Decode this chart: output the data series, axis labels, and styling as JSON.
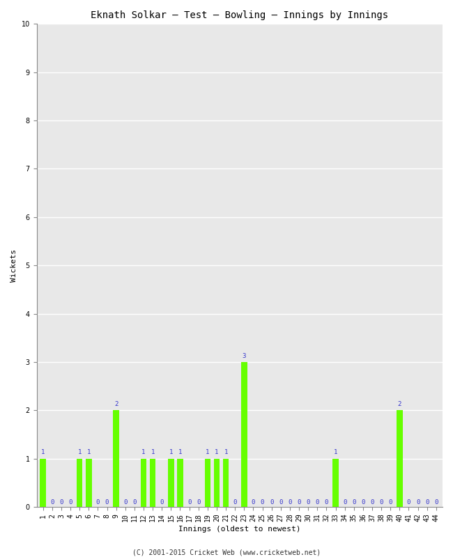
{
  "title": "Eknath Solkar – Test – Bowling – Innings by Innings",
  "xlabel": "Innings (oldest to newest)",
  "ylabel": "Wickets",
  "footnote": "(C) 2001-2015 Cricket Web (www.cricketweb.net)",
  "ylim": [
    0,
    10
  ],
  "yticks": [
    0,
    1,
    2,
    3,
    4,
    5,
    6,
    7,
    8,
    9,
    10
  ],
  "bar_color": "#66ff00",
  "label_color": "#3333cc",
  "plot_bg_color": "#e8e8e8",
  "fig_bg_color": "#ffffff",
  "grid_color": "#ffffff",
  "innings": [
    1,
    2,
    3,
    4,
    5,
    6,
    7,
    8,
    9,
    10,
    11,
    12,
    13,
    14,
    15,
    16,
    17,
    18,
    19,
    20,
    21,
    22,
    23,
    24,
    25,
    26,
    27,
    28,
    29,
    30,
    31,
    32,
    33,
    34,
    35,
    36,
    37,
    38,
    39,
    40,
    41,
    42,
    43,
    44
  ],
  "wickets": [
    1,
    0,
    0,
    0,
    1,
    1,
    0,
    0,
    2,
    0,
    0,
    1,
    1,
    0,
    1,
    1,
    0,
    0,
    1,
    1,
    1,
    0,
    3,
    0,
    0,
    0,
    0,
    0,
    0,
    0,
    0,
    0,
    1,
    0,
    0,
    0,
    0,
    0,
    0,
    2,
    0,
    0,
    0,
    0
  ],
  "title_fontsize": 10,
  "axis_label_fontsize": 8,
  "tick_fontsize": 7,
  "footnote_fontsize": 7,
  "bar_label_fontsize": 6.5
}
